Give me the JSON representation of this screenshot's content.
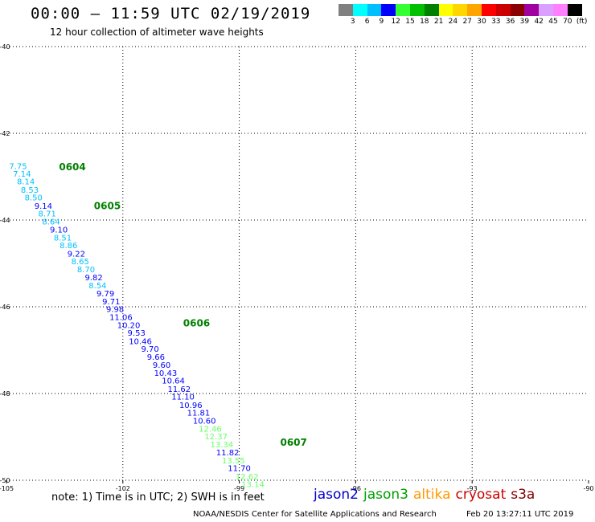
{
  "title": "00:00 — 11:59 UTC 02/19/2019",
  "subtitle": "12 hour collection of altimeter wave heights",
  "legend": {
    "colors": [
      "#808080",
      "#00ffff",
      "#00bfff",
      "#0000ff",
      "#33ff33",
      "#00c000",
      "#008000",
      "#ffff00",
      "#ffd700",
      "#ffa500",
      "#ff0000",
      "#cc0000",
      "#8b0000",
      "#a000a0",
      "#d9a0ff",
      "#ff80ff",
      "#000000"
    ],
    "labels": [
      "3",
      "6",
      "9",
      "12",
      "15",
      "18",
      "21",
      "24",
      "27",
      "30",
      "33",
      "36",
      "39",
      "42",
      "45",
      "70",
      "(ft)"
    ]
  },
  "note": "note:  1) Time is in UTC; 2) SWH is in feet",
  "satellites": [
    {
      "name": "jason2",
      "color": "#0000cc"
    },
    {
      "name": "jason3",
      "color": "#00a000"
    },
    {
      "name": "altika",
      "color": "#ff9900"
    },
    {
      "name": "cryosat",
      "color": "#cc0000"
    },
    {
      "name": "s3a",
      "color": "#800000"
    }
  ],
  "footer_left": "NOAA/NESDIS Center for Satellite Applications and Research",
  "footer_right": "Feb 20 13:27:11 UTC 2019",
  "chart_data": {
    "type": "scatter",
    "xlim": [
      -105,
      -90
    ],
    "ylim": [
      -50,
      -40
    ],
    "x_ticks": [
      -105,
      -102,
      -99,
      -96,
      -93,
      -90
    ],
    "y_ticks": [
      -40,
      -42,
      -44,
      -46,
      -48,
      -50
    ],
    "grid": true,
    "points": [
      {
        "x": -104.7,
        "y": -42.82,
        "v": "7.75",
        "c": "#00bfff"
      },
      {
        "x": -104.6,
        "y": -43.0,
        "v": "7.14",
        "c": "#00bfff"
      },
      {
        "x": -104.5,
        "y": -43.18,
        "v": "8.14",
        "c": "#00bfff"
      },
      {
        "x": -104.4,
        "y": -43.37,
        "v": "8.53",
        "c": "#00bfff"
      },
      {
        "x": -104.3,
        "y": -43.55,
        "v": "8.50",
        "c": "#00bfff"
      },
      {
        "x": -104.05,
        "y": -43.74,
        "v": "9.14",
        "c": "#0000ff"
      },
      {
        "x": -103.95,
        "y": -43.92,
        "v": "8.71",
        "c": "#00bfff"
      },
      {
        "x": -103.85,
        "y": -44.1,
        "v": "8.64",
        "c": "#00bfff"
      },
      {
        "x": -103.65,
        "y": -44.29,
        "v": "9.10",
        "c": "#0000ff"
      },
      {
        "x": -103.55,
        "y": -44.47,
        "v": "8.51",
        "c": "#00bfff"
      },
      {
        "x": -103.4,
        "y": -44.65,
        "v": "8.86",
        "c": "#00bfff"
      },
      {
        "x": -103.2,
        "y": -44.84,
        "v": "9.22",
        "c": "#0000ff"
      },
      {
        "x": -103.1,
        "y": -45.02,
        "v": "8.65",
        "c": "#00bfff"
      },
      {
        "x": -102.95,
        "y": -45.2,
        "v": "8.70",
        "c": "#00bfff"
      },
      {
        "x": -102.75,
        "y": -45.39,
        "v": "9.82",
        "c": "#0000ff"
      },
      {
        "x": -102.65,
        "y": -45.57,
        "v": "8.54",
        "c": "#00bfff"
      },
      {
        "x": -102.45,
        "y": -45.76,
        "v": "9.79",
        "c": "#0000ff"
      },
      {
        "x": -102.3,
        "y": -45.94,
        "v": "9.71",
        "c": "#0000ff"
      },
      {
        "x": -102.2,
        "y": -46.12,
        "v": "9.98",
        "c": "#0000ff"
      },
      {
        "x": -102.05,
        "y": -46.31,
        "v": "11.06",
        "c": "#0000ff"
      },
      {
        "x": -101.85,
        "y": -46.49,
        "v": "10.20",
        "c": "#0000ff"
      },
      {
        "x": -101.65,
        "y": -46.67,
        "v": "9.53",
        "c": "#0000ff"
      },
      {
        "x": -101.55,
        "y": -46.86,
        "v": "10.46",
        "c": "#0000ff"
      },
      {
        "x": -101.3,
        "y": -47.04,
        "v": "9.70",
        "c": "#0000ff"
      },
      {
        "x": -101.15,
        "y": -47.22,
        "v": "9.66",
        "c": "#0000ff"
      },
      {
        "x": -101.0,
        "y": -47.41,
        "v": "9.60",
        "c": "#0000ff"
      },
      {
        "x": -100.9,
        "y": -47.59,
        "v": "10.43",
        "c": "#0000ff"
      },
      {
        "x": -100.7,
        "y": -47.77,
        "v": "10.64",
        "c": "#0000ff"
      },
      {
        "x": -100.55,
        "y": -47.96,
        "v": "11.62",
        "c": "#0000ff"
      },
      {
        "x": -100.45,
        "y": -48.14,
        "v": "11.10",
        "c": "#0000ff"
      },
      {
        "x": -100.25,
        "y": -48.33,
        "v": "10.96",
        "c": "#0000ff"
      },
      {
        "x": -100.05,
        "y": -48.51,
        "v": "11.81",
        "c": "#0000ff"
      },
      {
        "x": -99.9,
        "y": -48.69,
        "v": "10.60",
        "c": "#0000ff"
      },
      {
        "x": -99.75,
        "y": -48.88,
        "v": "12.46",
        "c": "#66ff66"
      },
      {
        "x": -99.6,
        "y": -49.06,
        "v": "12.37",
        "c": "#66ff66"
      },
      {
        "x": -99.45,
        "y": -49.24,
        "v": "13.34",
        "c": "#66ff66"
      },
      {
        "x": -99.3,
        "y": -49.43,
        "v": "11.82",
        "c": "#0000ff"
      },
      {
        "x": -99.15,
        "y": -49.61,
        "v": "13.55",
        "c": "#66ff66"
      },
      {
        "x": -99.0,
        "y": -49.79,
        "v": "11.70",
        "c": "#0000ff"
      },
      {
        "x": -98.8,
        "y": -49.98,
        "v": "12.62",
        "c": "#66ff66"
      },
      {
        "x": -98.65,
        "y": -50.16,
        "v": "13.14",
        "c": "#66ff66"
      }
    ],
    "annotations": [
      {
        "x": -103.3,
        "y": -42.85,
        "text": "0604"
      },
      {
        "x": -102.4,
        "y": -43.75,
        "text": "0605"
      },
      {
        "x": -100.1,
        "y": -46.45,
        "text": "0606"
      },
      {
        "x": -97.6,
        "y": -49.2,
        "text": "0607"
      }
    ]
  }
}
